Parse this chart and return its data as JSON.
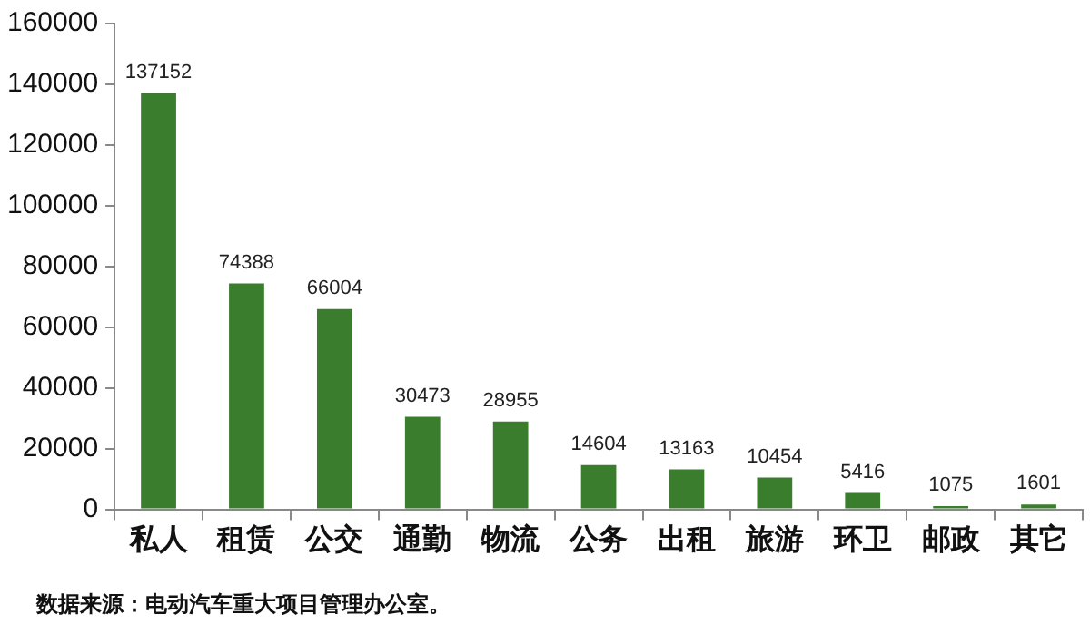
{
  "chart_data": {
    "type": "bar",
    "categories": [
      "私人",
      "租赁",
      "公交",
      "通勤",
      "物流",
      "公务",
      "出租",
      "旅游",
      "环卫",
      "邮政",
      "其它"
    ],
    "values": [
      137152,
      74388,
      66004,
      30473,
      28955,
      14604,
      13163,
      10454,
      5416,
      1075,
      1601
    ],
    "color": "#3a7d2c",
    "ylim": [
      0,
      160000
    ],
    "yticks": [
      0,
      20000,
      40000,
      60000,
      80000,
      100000,
      120000,
      140000,
      160000
    ],
    "grid": false,
    "legend": false,
    "data_labels": true,
    "annotations": [
      "数据来源：电动汽车重大项目管理办公室。"
    ]
  }
}
